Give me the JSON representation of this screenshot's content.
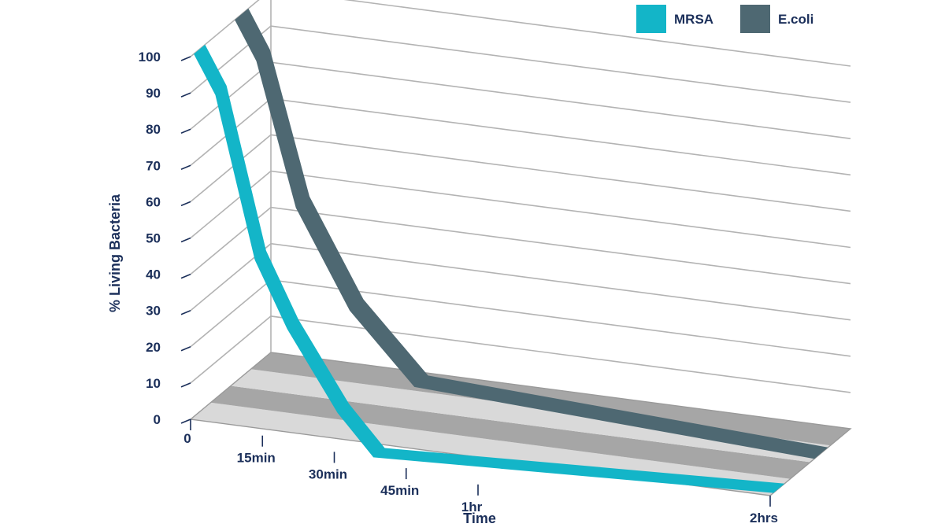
{
  "chart_data": {
    "type": "line",
    "title": "",
    "xlabel": "Time",
    "ylabel": "% Living Bacteria",
    "categories": [
      "0",
      "15min",
      "30min",
      "45min",
      "1hr",
      "2hrs"
    ],
    "y_ticks": [
      "0",
      "10",
      "20",
      "30",
      "40",
      "50",
      "60",
      "70",
      "80",
      "90",
      "100"
    ],
    "ylim": [
      0,
      100
    ],
    "style": "3d-ribbon",
    "legend_position": "top-right",
    "grid": true,
    "series": [
      {
        "name": "MRSA",
        "color": "#13b5c8",
        "points": [
          {
            "x": 0,
            "y": 100
          },
          {
            "x": 0.3,
            "y": 90
          },
          {
            "x": 0.85,
            "y": 47
          },
          {
            "x": 1.3,
            "y": 30
          },
          {
            "x": 2.0,
            "y": 10
          },
          {
            "x": 2.5,
            "y": 0
          },
          {
            "x": 5,
            "y": 0
          }
        ]
      },
      {
        "name": "E.coli",
        "color": "#4e6872",
        "points": [
          {
            "x": 0,
            "y": 100
          },
          {
            "x": 0.3,
            "y": 90
          },
          {
            "x": 0.85,
            "y": 52
          },
          {
            "x": 1.6,
            "y": 27
          },
          {
            "x": 2.5,
            "y": 10
          },
          {
            "x": 5,
            "y": 0
          }
        ]
      }
    ]
  },
  "legend": [
    {
      "label": "MRSA",
      "color": "#13b5c8"
    },
    {
      "label": "E.coli",
      "color": "#4e6872"
    }
  ],
  "floor_colors": {
    "light": "#d9d9d9",
    "dark": "#a6a6a6"
  },
  "grid_color": "#b3b3b3",
  "text_color": "#1b2f5a"
}
